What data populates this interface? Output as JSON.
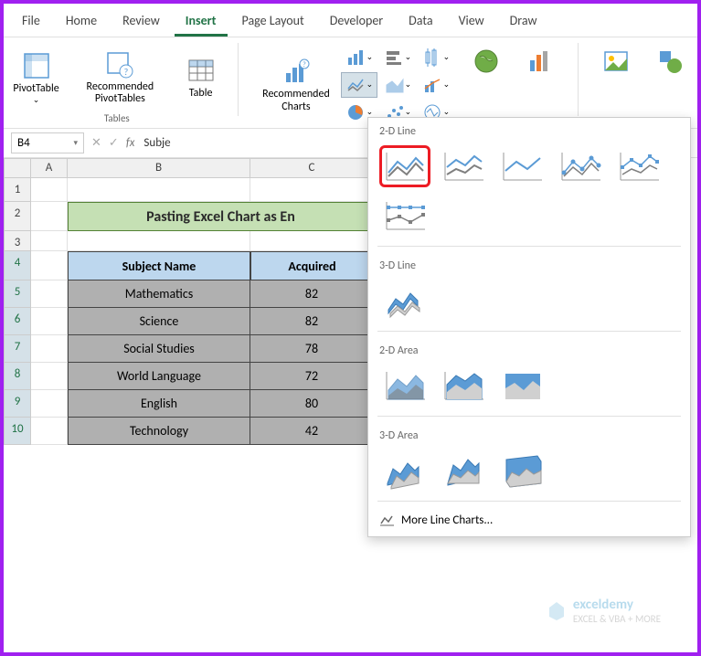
{
  "ribbon": {
    "tabs": [
      "File",
      "Home",
      "Review",
      "Insert",
      "Page Layout",
      "Developer",
      "Data",
      "View",
      "Draw"
    ],
    "active_tab": "Insert",
    "groups": {
      "tables": {
        "label": "Tables",
        "pivot": "PivotTable",
        "recommended_pivot": "Recommended PivotTables",
        "table": "Table"
      },
      "charts": {
        "recommended_charts": "Recommended Charts"
      },
      "maps": "Maps",
      "pivotchart": "PivotChart",
      "pictures": "Pictures",
      "shapes": "Sha"
    }
  },
  "formula_bar": {
    "name_box": "B4",
    "fx": "fx",
    "value": "Subje"
  },
  "columns": [
    "A",
    "B",
    "C"
  ],
  "rows": [
    "1",
    "2",
    "3",
    "4",
    "5",
    "6",
    "7",
    "8",
    "9",
    "10"
  ],
  "title_text": "Pasting Excel Chart as En",
  "table": {
    "header_b": "Subject Name",
    "header_c": "Acquired",
    "rows": [
      {
        "b": "Mathematics",
        "c": "82"
      },
      {
        "b": "Science",
        "c": "82"
      },
      {
        "b": "Social Studies",
        "c": "78"
      },
      {
        "b": "World Language",
        "c": "72"
      },
      {
        "b": "English",
        "c": "80"
      },
      {
        "b": "Technology",
        "c": "42"
      }
    ]
  },
  "chart_menu": {
    "section_2d_line": "2-D Line",
    "section_3d_line": "3-D Line",
    "section_2d_area": "2-D Area",
    "section_3d_area": "3-D Area",
    "more": "More Line Charts..."
  },
  "colors": {
    "accent": "#217346",
    "highlight_border": "#ed1c24",
    "chart_blue": "#5b9bd5",
    "chart_gray": "#7f7f7f",
    "table_header_bg": "#ddebf7",
    "title_bg": "#c5e0b4",
    "selection_gray": "#b0b0b0"
  },
  "watermark": {
    "brand": "exceldemy",
    "sub": "EXCEL & VBA + MORE"
  }
}
